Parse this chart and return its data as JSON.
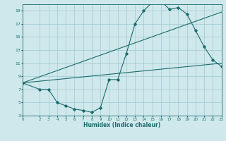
{
  "xlabel": "Humidex (Indice chaleur)",
  "bg_color": "#cfe8ec",
  "grid_color": "#a0c8d0",
  "line_color": "#1a6b6b",
  "xlim": [
    0,
    23
  ],
  "ylim": [
    3,
    20
  ],
  "xticks": [
    0,
    2,
    3,
    4,
    5,
    6,
    7,
    8,
    9,
    10,
    11,
    12,
    13,
    14,
    15,
    16,
    17,
    18,
    19,
    20,
    21,
    22,
    23
  ],
  "yticks": [
    3,
    5,
    7,
    9,
    11,
    13,
    15,
    17,
    19
  ],
  "line1_x": [
    0,
    2,
    3,
    4,
    5,
    6,
    7,
    8,
    9,
    10,
    11,
    12,
    13,
    14,
    15,
    16,
    17,
    18,
    19,
    20,
    21,
    22,
    23
  ],
  "line1_y": [
    8.0,
    7.0,
    7.0,
    5.0,
    4.5,
    4.0,
    3.8,
    3.5,
    4.2,
    8.5,
    8.5,
    12.5,
    17.0,
    19.0,
    20.3,
    20.5,
    19.2,
    19.5,
    18.5,
    16.0,
    13.5,
    11.5,
    10.5
  ],
  "line2_x": [
    0,
    23
  ],
  "line2_y": [
    8.0,
    11.0
  ],
  "line3_x": [
    0,
    23
  ],
  "line3_y": [
    8.0,
    18.8
  ]
}
